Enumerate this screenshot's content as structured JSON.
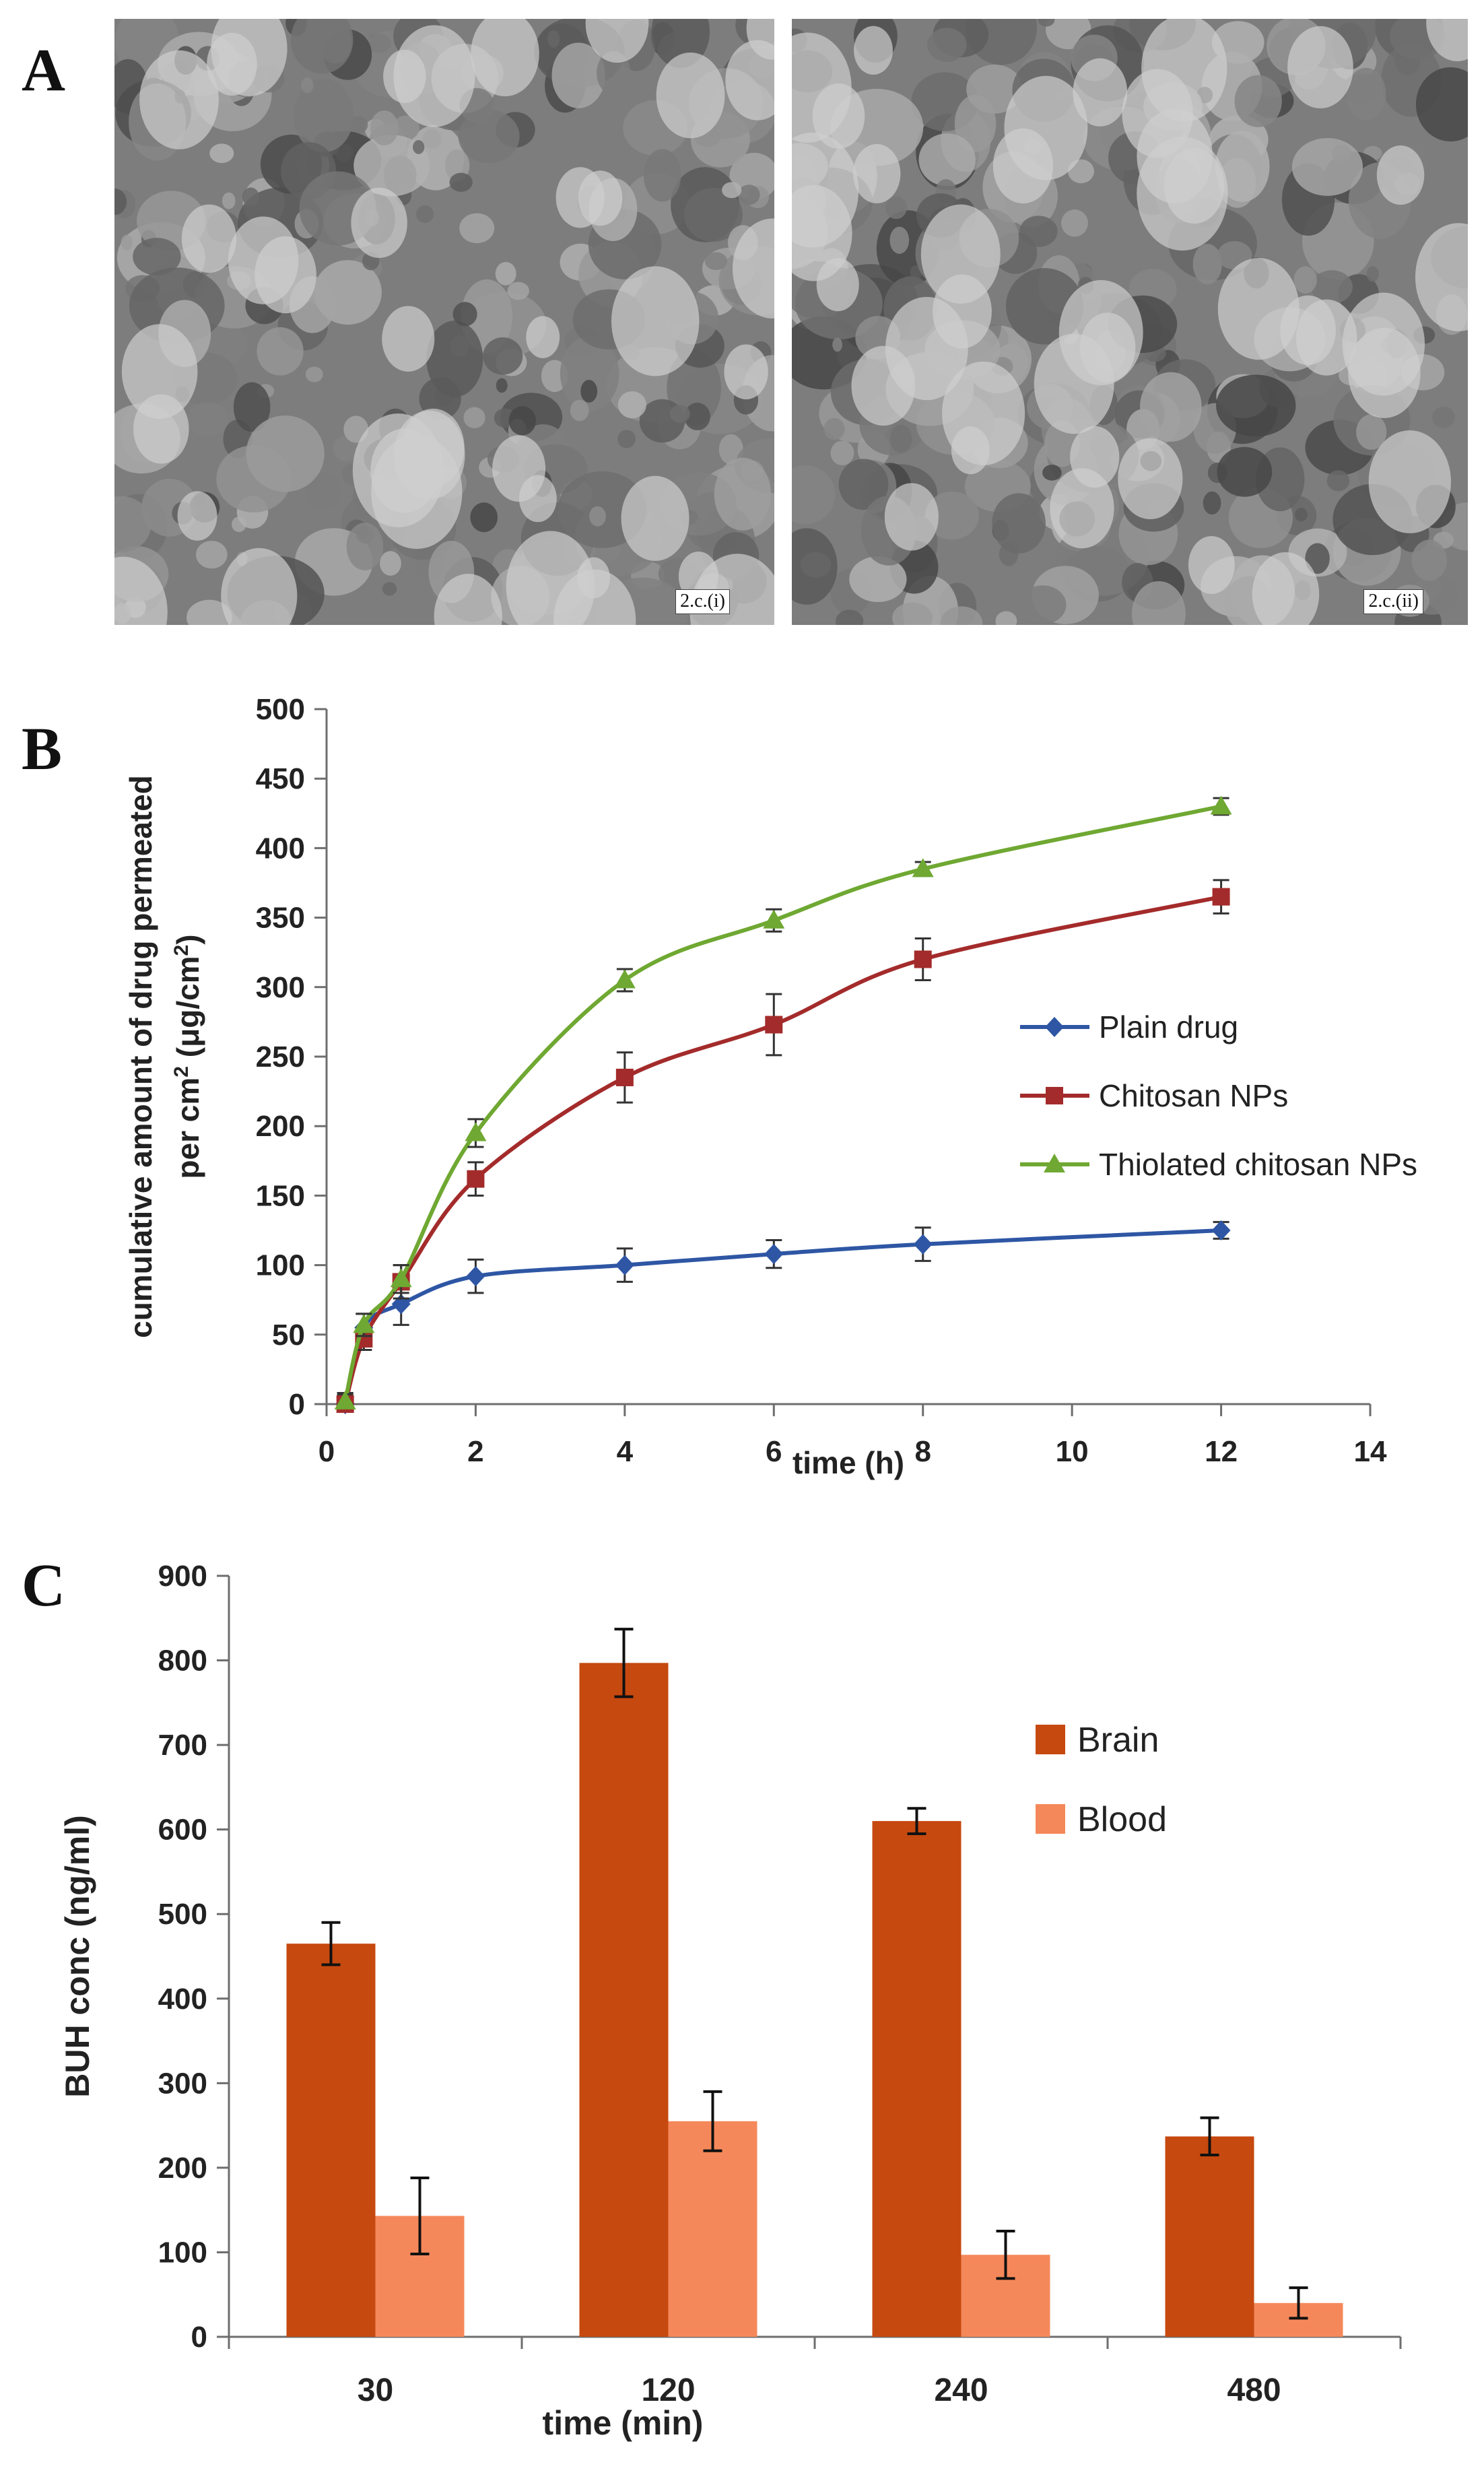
{
  "panel_labels": {
    "a": "A",
    "b": "B",
    "c": "C"
  },
  "micrographs": [
    {
      "label": "2.c.(i)"
    },
    {
      "label": "2.c.(ii)"
    }
  ],
  "colors": {
    "plain": "#2E56A4",
    "chitosan": "#A42B2B",
    "thiolated": "#6FA832",
    "brain": "#C6490F",
    "blood": "#F5885A",
    "axis": "#6e6e6e",
    "text": "#222222"
  },
  "chart_data": [
    {
      "type": "line",
      "ylabel_line1": "cumulative amount of drug permeated",
      "ylabel_line2_prefix": "per cm",
      "ylabel_line2_suffix": " (μg/cm",
      "ylabel_line2_end": ")",
      "ylabel_sup": "2",
      "xlabel": "time (h)",
      "xlim": [
        0,
        14
      ],
      "ylim": [
        0,
        500
      ],
      "xticks": [
        0,
        2,
        4,
        6,
        8,
        10,
        12,
        14
      ],
      "yticks": [
        0,
        50,
        100,
        150,
        200,
        250,
        300,
        350,
        400,
        450,
        500
      ],
      "series": [
        {
          "name": "Plain drug",
          "marker": "diamond",
          "color_key": "plain",
          "x": [
            0.25,
            0.5,
            1,
            2,
            4,
            6,
            8,
            12
          ],
          "y": [
            0,
            55,
            72,
            92,
            100,
            108,
            115,
            125
          ],
          "err": [
            8,
            10,
            15,
            12,
            12,
            10,
            12,
            6
          ]
        },
        {
          "name": "Chitosan NPs",
          "marker": "square",
          "color_key": "chitosan",
          "x": [
            0.25,
            0.5,
            1,
            2,
            4,
            6,
            8,
            12
          ],
          "y": [
            0,
            47,
            88,
            162,
            235,
            273,
            320,
            365
          ],
          "err": [
            8,
            8,
            12,
            12,
            18,
            22,
            15,
            12
          ]
        },
        {
          "name": "Thiolated chitosan NPs",
          "marker": "triangle",
          "color_key": "thiolated",
          "x": [
            0.25,
            0.5,
            1,
            2,
            4,
            6,
            8,
            12
          ],
          "y": [
            2,
            57,
            90,
            195,
            305,
            348,
            385,
            430
          ],
          "err": [
            5,
            8,
            10,
            10,
            8,
            8,
            5,
            6
          ]
        }
      ]
    },
    {
      "type": "bar",
      "ylabel": "BUH conc (ng/ml)",
      "xlabel": "time (min)",
      "ylim": [
        0,
        900
      ],
      "yticks": [
        0,
        100,
        200,
        300,
        400,
        500,
        600,
        700,
        800,
        900
      ],
      "categories": [
        "30",
        "120",
        "240",
        "480"
      ],
      "series": [
        {
          "name": "Brain",
          "color_key": "brain",
          "values": [
            465,
            797,
            610,
            237
          ],
          "err": [
            25,
            40,
            15,
            22
          ]
        },
        {
          "name": "Blood",
          "color_key": "blood",
          "values": [
            143,
            255,
            97,
            40
          ],
          "err": [
            45,
            35,
            28,
            18
          ]
        }
      ]
    }
  ]
}
